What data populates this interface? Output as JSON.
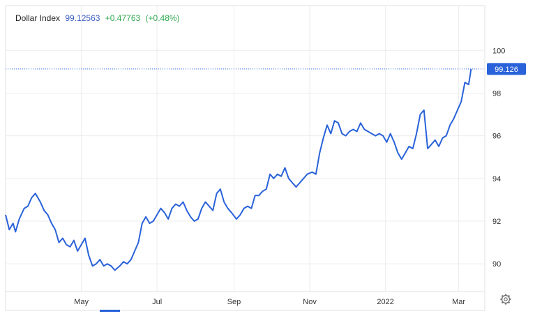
{
  "header": {
    "name": "Dollar Index",
    "price": "99.12563",
    "change": "+0.47763",
    "change_pct": "(+0.48%)"
  },
  "colors": {
    "line": "#2962d9",
    "price_text": "#3b5fc4",
    "change_text": "#2fa84f",
    "grid": "#ececec",
    "last_badge": "#2962d9"
  },
  "settings_icon": "gear-icon",
  "chart_data": {
    "type": "line",
    "title": "Dollar Index",
    "xlabel": "",
    "ylabel": "",
    "ylim": [
      88.7,
      102.1
    ],
    "yticks": [
      90,
      92,
      94,
      96,
      98,
      100
    ],
    "ytick_labels": [
      "90",
      "92",
      "94",
      "96",
      "98",
      "100"
    ],
    "xticks": [
      "2021-05-01",
      "2021-07-01",
      "2021-09-01",
      "2021-11-01",
      "2022-01-01",
      "2022-03-01"
    ],
    "xtick_labels": [
      "May",
      "Jul",
      "Sep",
      "Nov",
      "2022",
      "Mar"
    ],
    "xlim": [
      "2021-03-01",
      "2022-03-22"
    ],
    "last_value": "99.126",
    "grid": true,
    "series": [
      {
        "name": "Dollar Index",
        "points": [
          [
            "2021-03-01",
            92.3
          ],
          [
            "2021-03-04",
            91.6
          ],
          [
            "2021-03-07",
            91.9
          ],
          [
            "2021-03-09",
            91.5
          ],
          [
            "2021-03-12",
            92.1
          ],
          [
            "2021-03-16",
            92.6
          ],
          [
            "2021-03-19",
            92.7
          ],
          [
            "2021-03-22",
            93.1
          ],
          [
            "2021-03-25",
            93.3
          ],
          [
            "2021-03-29",
            92.9
          ],
          [
            "2021-04-01",
            92.5
          ],
          [
            "2021-04-04",
            92.3
          ],
          [
            "2021-04-07",
            91.9
          ],
          [
            "2021-04-10",
            91.6
          ],
          [
            "2021-04-13",
            91.0
          ],
          [
            "2021-04-16",
            91.2
          ],
          [
            "2021-04-19",
            90.9
          ],
          [
            "2021-04-22",
            90.8
          ],
          [
            "2021-04-25",
            91.1
          ],
          [
            "2021-04-28",
            90.6
          ],
          [
            "2021-05-01",
            90.9
          ],
          [
            "2021-05-04",
            91.2
          ],
          [
            "2021-05-07",
            90.4
          ],
          [
            "2021-05-10",
            89.9
          ],
          [
            "2021-05-13",
            90.0
          ],
          [
            "2021-05-16",
            90.2
          ],
          [
            "2021-05-19",
            89.9
          ],
          [
            "2021-05-22",
            90.0
          ],
          [
            "2021-05-25",
            89.9
          ],
          [
            "2021-05-28",
            89.7
          ],
          [
            "2021-06-01",
            89.9
          ],
          [
            "2021-06-04",
            90.1
          ],
          [
            "2021-06-07",
            90.0
          ],
          [
            "2021-06-10",
            90.2
          ],
          [
            "2021-06-13",
            90.6
          ],
          [
            "2021-06-16",
            91.0
          ],
          [
            "2021-06-19",
            91.9
          ],
          [
            "2021-06-22",
            92.2
          ],
          [
            "2021-06-25",
            91.9
          ],
          [
            "2021-06-28",
            92.0
          ],
          [
            "2021-07-01",
            92.3
          ],
          [
            "2021-07-04",
            92.6
          ],
          [
            "2021-07-07",
            92.4
          ],
          [
            "2021-07-10",
            92.1
          ],
          [
            "2021-07-13",
            92.6
          ],
          [
            "2021-07-16",
            92.8
          ],
          [
            "2021-07-19",
            92.7
          ],
          [
            "2021-07-22",
            92.9
          ],
          [
            "2021-07-25",
            92.5
          ],
          [
            "2021-07-28",
            92.2
          ],
          [
            "2021-07-31",
            92.0
          ],
          [
            "2021-08-03",
            92.1
          ],
          [
            "2021-08-06",
            92.6
          ],
          [
            "2021-08-09",
            92.9
          ],
          [
            "2021-08-12",
            92.7
          ],
          [
            "2021-08-15",
            92.5
          ],
          [
            "2021-08-18",
            93.3
          ],
          [
            "2021-08-21",
            93.5
          ],
          [
            "2021-08-24",
            92.9
          ],
          [
            "2021-08-27",
            92.6
          ],
          [
            "2021-08-30",
            92.4
          ],
          [
            "2021-09-03",
            92.1
          ],
          [
            "2021-09-06",
            92.3
          ],
          [
            "2021-09-09",
            92.6
          ],
          [
            "2021-09-12",
            92.7
          ],
          [
            "2021-09-15",
            92.6
          ],
          [
            "2021-09-18",
            93.2
          ],
          [
            "2021-09-21",
            93.2
          ],
          [
            "2021-09-24",
            93.4
          ],
          [
            "2021-09-27",
            93.5
          ],
          [
            "2021-09-30",
            94.2
          ],
          [
            "2021-10-03",
            94.0
          ],
          [
            "2021-10-06",
            94.2
          ],
          [
            "2021-10-09",
            94.1
          ],
          [
            "2021-10-12",
            94.5
          ],
          [
            "2021-10-15",
            94.0
          ],
          [
            "2021-10-18",
            93.8
          ],
          [
            "2021-10-21",
            93.6
          ],
          [
            "2021-10-24",
            93.8
          ],
          [
            "2021-10-27",
            94.0
          ],
          [
            "2021-10-30",
            94.2
          ],
          [
            "2021-11-03",
            94.3
          ],
          [
            "2021-11-06",
            94.2
          ],
          [
            "2021-11-09",
            95.2
          ],
          [
            "2021-11-12",
            95.9
          ],
          [
            "2021-11-15",
            96.5
          ],
          [
            "2021-11-18",
            96.1
          ],
          [
            "2021-11-21",
            96.7
          ],
          [
            "2021-11-24",
            96.6
          ],
          [
            "2021-11-27",
            96.1
          ],
          [
            "2021-11-30",
            96.0
          ],
          [
            "2021-12-03",
            96.2
          ],
          [
            "2021-12-06",
            96.3
          ],
          [
            "2021-12-09",
            96.2
          ],
          [
            "2021-12-12",
            96.6
          ],
          [
            "2021-12-15",
            96.3
          ],
          [
            "2021-12-18",
            96.2
          ],
          [
            "2021-12-21",
            96.1
          ],
          [
            "2021-12-24",
            96.0
          ],
          [
            "2021-12-27",
            96.1
          ],
          [
            "2021-12-30",
            96.0
          ],
          [
            "2022-01-02",
            95.7
          ],
          [
            "2022-01-05",
            96.1
          ],
          [
            "2022-01-08",
            95.7
          ],
          [
            "2022-01-11",
            95.2
          ],
          [
            "2022-01-14",
            94.9
          ],
          [
            "2022-01-17",
            95.2
          ],
          [
            "2022-01-20",
            95.5
          ],
          [
            "2022-01-23",
            95.4
          ],
          [
            "2022-01-26",
            96.1
          ],
          [
            "2022-01-29",
            97.0
          ],
          [
            "2022-02-01",
            97.2
          ],
          [
            "2022-02-04",
            95.4
          ],
          [
            "2022-02-07",
            95.6
          ],
          [
            "2022-02-10",
            95.8
          ],
          [
            "2022-02-13",
            95.5
          ],
          [
            "2022-02-16",
            95.9
          ],
          [
            "2022-02-19",
            96.0
          ],
          [
            "2022-02-22",
            96.5
          ],
          [
            "2022-02-25",
            96.8
          ],
          [
            "2022-02-28",
            97.2
          ],
          [
            "2022-03-03",
            97.6
          ],
          [
            "2022-03-06",
            98.5
          ],
          [
            "2022-03-09",
            98.4
          ],
          [
            "2022-03-11",
            99.13
          ]
        ]
      }
    ]
  }
}
